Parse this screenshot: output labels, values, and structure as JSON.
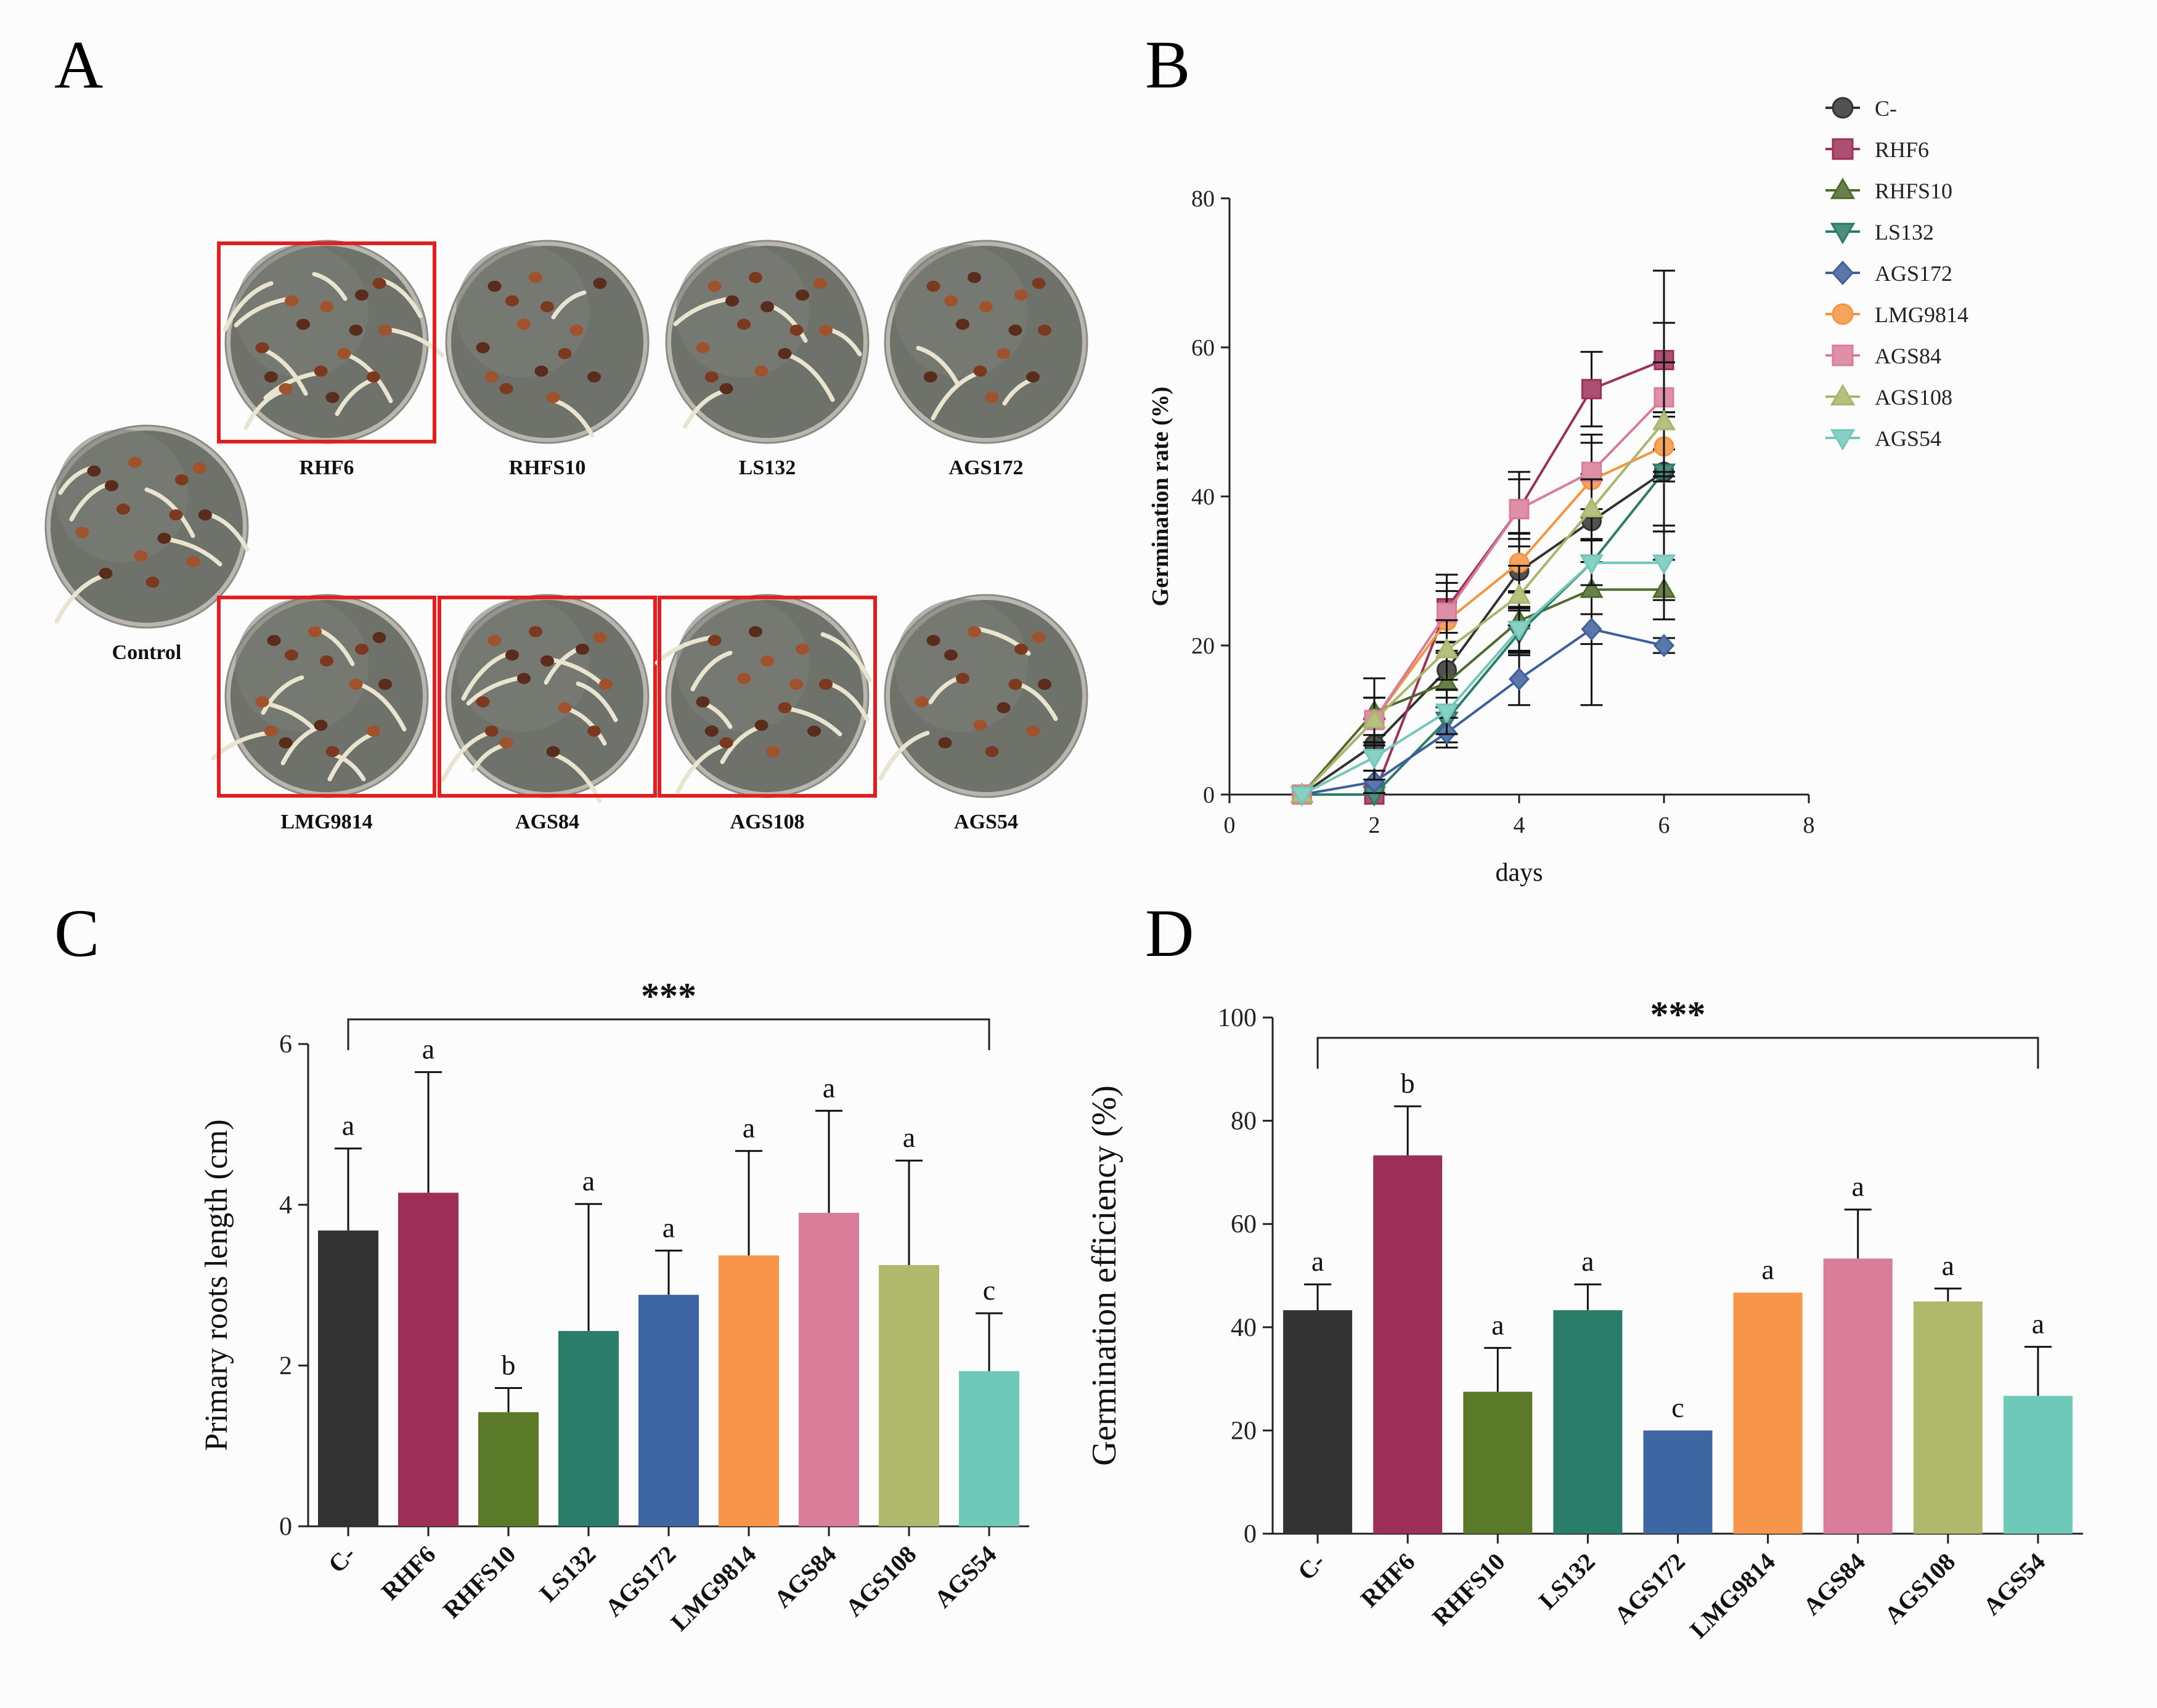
{
  "panels": {
    "a": {
      "letter": "A",
      "plates": [
        {
          "label": "Control",
          "seedlings": 6,
          "highlighted": false
        },
        {
          "label": "RHF6",
          "seedlings": 10,
          "highlighted": true
        },
        {
          "label": "RHFS10",
          "seedlings": 2,
          "highlighted": false
        },
        {
          "label": "LS132",
          "seedlings": 5,
          "highlighted": false
        },
        {
          "label": "AGS172",
          "seedlings": 3,
          "highlighted": false
        },
        {
          "label": "LMG9814",
          "seedlings": 8,
          "highlighted": true
        },
        {
          "label": "AGS84",
          "seedlings": 9,
          "highlighted": true
        },
        {
          "label": "AGS108",
          "seedlings": 8,
          "highlighted": true
        },
        {
          "label": "AGS54",
          "seedlings": 4,
          "highlighted": false
        }
      ],
      "highlight_color": "#e02020"
    },
    "b": {
      "letter": "B"
    },
    "c": {
      "letter": "C"
    },
    "d": {
      "letter": "D"
    }
  },
  "chart_data": [
    {
      "panel": "B",
      "type": "line",
      "xlabel": "days",
      "ylabel": "Germination rate (%)",
      "xlim": [
        0,
        8
      ],
      "ylim": [
        0,
        80
      ],
      "xticks": [
        0,
        2,
        4,
        6,
        8
      ],
      "yticks": [
        0,
        20,
        40,
        60,
        80
      ],
      "legend_position": "top-right",
      "x": [
        1,
        2,
        3,
        4,
        5,
        6
      ],
      "series": [
        {
          "name": "C-",
          "marker": "circle",
          "color": "#333333",
          "values": [
            0,
            6.7,
            16.7,
            30,
            36.7,
            43.3
          ],
          "errors": [
            0,
            3.5,
            5,
            5,
            5.5,
            8
          ]
        },
        {
          "name": "RHF6",
          "marker": "square",
          "color": "#9d3058",
          "values": [
            0,
            0,
            25,
            38.3,
            54.4,
            58.3
          ],
          "errors": [
            0,
            0,
            4.5,
            5,
            5,
            12
          ]
        },
        {
          "name": "RHFS10",
          "marker": "triangle-up",
          "color": "#4d6b2c",
          "values": [
            0,
            11.1,
            15,
            23.3,
            27.5,
            27.5
          ],
          "errors": [
            0,
            4.5,
            4,
            4,
            15.5,
            4
          ]
        },
        {
          "name": "LS132",
          "marker": "triangle-down",
          "color": "#2e7a68",
          "values": [
            0,
            0,
            10,
            21.7,
            31.1,
            43.3
          ],
          "errors": [
            0,
            0,
            3,
            3,
            3,
            8
          ]
        },
        {
          "name": "AGS172",
          "marker": "diamond",
          "color": "#3d5f9b",
          "values": [
            0,
            1.7,
            8.3,
            15.5,
            22.2,
            20
          ],
          "errors": [
            0,
            1.5,
            2,
            3.5,
            2,
            1
          ]
        },
        {
          "name": "LMG9814",
          "marker": "circle",
          "color": "#f39441",
          "values": [
            0,
            10,
            23.3,
            31.1,
            42.2,
            46.7
          ],
          "errors": [
            0,
            3,
            4,
            4,
            5,
            4
          ]
        },
        {
          "name": "AGS84",
          "marker": "square",
          "color": "#d87c98",
          "values": [
            0,
            10,
            24.4,
            38.3,
            43.3,
            53.3
          ],
          "errors": [
            0,
            3,
            4,
            4,
            5,
            10
          ]
        },
        {
          "name": "AGS108",
          "marker": "triangle-up",
          "color": "#a9b56a",
          "values": [
            0,
            10,
            19.4,
            26.7,
            38.3,
            50
          ],
          "errors": [
            0,
            3,
            4,
            4,
            4,
            8
          ]
        },
        {
          "name": "AGS54",
          "marker": "triangle-down",
          "color": "#72c8b8",
          "values": [
            0,
            5,
            11.1,
            22.2,
            31.1,
            31.1
          ],
          "errors": [
            0,
            3,
            3,
            3,
            3,
            5
          ]
        }
      ]
    },
    {
      "panel": "C",
      "type": "bar",
      "ylabel": "Primary roots length (cm)",
      "ylim": [
        0,
        6
      ],
      "yticks": [
        0,
        2,
        4,
        6
      ],
      "significance": "***",
      "categories": [
        "C-",
        "RHF6",
        "RHFS10",
        "LS132",
        "AGS172",
        "LMG9814",
        "AGS84",
        "AGS108",
        "AGS54"
      ],
      "values": [
        3.68,
        4.15,
        1.42,
        2.43,
        2.88,
        3.37,
        3.9,
        3.25,
        1.93
      ],
      "errors": [
        1.02,
        1.5,
        0.3,
        1.58,
        0.55,
        1.3,
        1.27,
        1.3,
        0.72
      ],
      "letters": [
        "a",
        "a",
        "b",
        "a",
        "a",
        "a",
        "a",
        "a",
        "c"
      ],
      "colors": [
        "#333333",
        "#9d3058",
        "#5a7a2a",
        "#2a7d69",
        "#3e66a3",
        "#f7954a",
        "#d97d9a",
        "#b0b86c",
        "#6fc9b8"
      ]
    },
    {
      "panel": "D",
      "type": "bar",
      "ylabel": "Germination efficiency (%)",
      "ylim": [
        0,
        100
      ],
      "yticks": [
        0,
        20,
        40,
        60,
        80,
        100
      ],
      "significance": "***",
      "categories": [
        "C-",
        "RHF6",
        "RHFS10",
        "LS132",
        "AGS172",
        "LMG9814",
        "AGS84",
        "AGS108",
        "AGS54"
      ],
      "values": [
        43.3,
        73.3,
        27.5,
        43.3,
        20,
        46.7,
        53.3,
        45,
        26.7
      ],
      "errors": [
        5,
        9.5,
        8.5,
        5,
        0,
        0,
        9.5,
        2.5,
        9.5
      ],
      "letters": [
        "a",
        "b",
        "a",
        "a",
        "c",
        "a",
        "a",
        "a",
        "a"
      ],
      "colors": [
        "#333333",
        "#9d3058",
        "#5a7a2a",
        "#2a7d69",
        "#3e66a3",
        "#f7954a",
        "#d97d9a",
        "#b0b86c",
        "#6fc9b8"
      ]
    }
  ]
}
